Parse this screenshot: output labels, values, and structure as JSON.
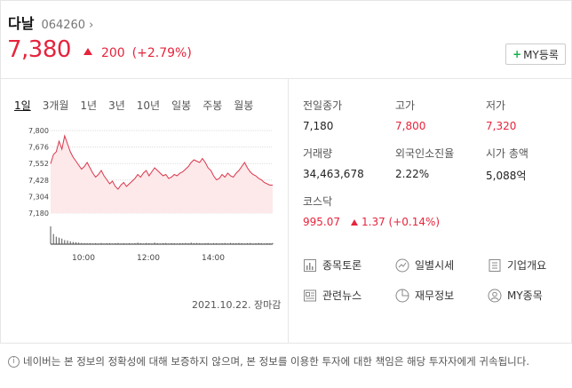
{
  "stock": {
    "name": "다날",
    "code": "064260",
    "price": "7,380",
    "change": "200",
    "change_rate": "(+2.79%)"
  },
  "my_button": {
    "label": "MY등록",
    "plus": "+"
  },
  "period_tabs": [
    "1일",
    "3개월",
    "1년",
    "3년",
    "10년",
    "일봉",
    "주봉",
    "월봉"
  ],
  "chart_data": {
    "type": "area",
    "y_ticks": [
      "7,800",
      "7,676",
      "7,552",
      "7,428",
      "7,304",
      "7,180"
    ],
    "ylim": [
      7180,
      7800
    ],
    "x_ticks": [
      "10:00",
      "12:00",
      "14:00"
    ],
    "prev_close": 7180,
    "series": [
      {
        "values": [
          7550,
          7620,
          7640,
          7720,
          7660,
          7760,
          7700,
          7640,
          7600,
          7570,
          7540,
          7510,
          7530,
          7560,
          7520,
          7480,
          7450,
          7470,
          7500,
          7460,
          7430,
          7400,
          7420,
          7380,
          7360,
          7390,
          7410,
          7380,
          7400,
          7420,
          7440,
          7470,
          7450,
          7480,
          7500,
          7460,
          7490,
          7520,
          7500,
          7480,
          7460,
          7470,
          7440,
          7450,
          7470,
          7460,
          7480,
          7490,
          7510,
          7530,
          7560,
          7580,
          7570,
          7560,
          7590,
          7560,
          7520,
          7500,
          7460,
          7430,
          7440,
          7470,
          7450,
          7480,
          7460,
          7450,
          7480,
          7500,
          7530,
          7560,
          7520,
          7490,
          7470,
          7460,
          7440,
          7430,
          7410,
          7400,
          7390,
          7390
        ]
      }
    ],
    "volume": [
      0.95,
      0.55,
      0.4,
      0.35,
      0.3,
      0.22,
      0.2,
      0.15,
      0.12,
      0.1,
      0.08,
      0.06,
      0.05,
      0.05,
      0.05,
      0.04,
      0.05,
      0.04,
      0.06,
      0.04,
      0.05,
      0.05,
      0.04,
      0.05,
      0.06,
      0.04,
      0.05,
      0.04,
      0.05,
      0.04,
      0.05,
      0.08,
      0.05,
      0.04,
      0.06,
      0.05,
      0.04,
      0.08,
      0.05,
      0.04,
      0.05,
      0.06,
      0.04,
      0.05,
      0.05,
      0.04,
      0.05,
      0.05,
      0.06,
      0.05,
      0.08,
      0.05,
      0.06,
      0.05,
      0.04,
      0.05,
      0.06,
      0.04,
      0.05,
      0.05,
      0.04,
      0.05,
      0.06,
      0.04,
      0.06,
      0.05,
      0.05,
      0.06,
      0.05,
      0.04,
      0.05,
      0.06,
      0.04,
      0.05,
      0.06,
      0.05,
      0.04,
      0.05,
      0.05,
      0.06
    ]
  },
  "chart_date": "2021.10.22. 장마감",
  "info": {
    "prev_close": {
      "label": "전일종가",
      "value": "7,180"
    },
    "high": {
      "label": "고가",
      "value": "7,800"
    },
    "low": {
      "label": "저가",
      "value": "7,320"
    },
    "volume": {
      "label": "거래량",
      "value": "34,463,678"
    },
    "foreign": {
      "label": "외국인소진율",
      "value": "2.22%"
    },
    "market_cap": {
      "label": "시가 총액",
      "value": "5,088억"
    },
    "kosdaq": {
      "label": "코스닥",
      "value": "995.07",
      "change": "1.37",
      "rate": "(+0.14%)"
    }
  },
  "links": {
    "discussion": "종목토론",
    "daily": "일별시세",
    "company": "기업개요",
    "news": "관련뉴스",
    "finance": "재무정보",
    "my": "MY종목"
  },
  "notice": "네이버는 본 정보의 정확성에 대해 보증하지 않으며, 본 정보를 이용한 투자에 대한 책임은 해당 투자자에게 귀속됩니다.",
  "colors": {
    "up": "#e6243c",
    "area": "#fde8ea",
    "line": "#d9374c"
  }
}
